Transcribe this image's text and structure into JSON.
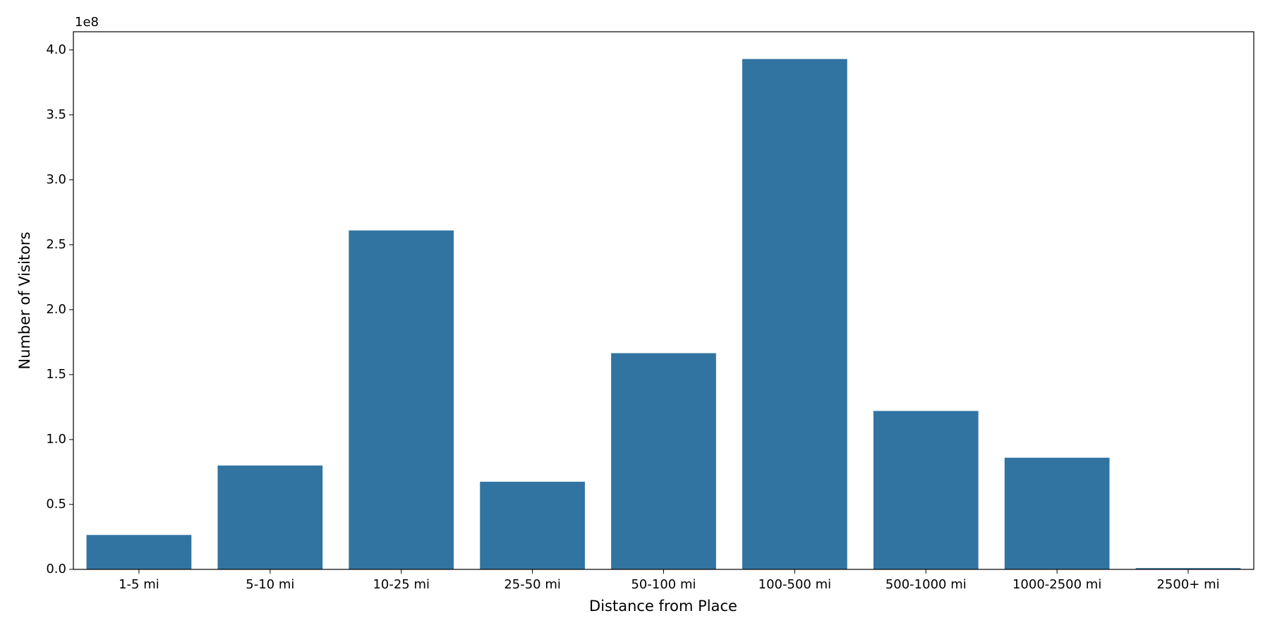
{
  "chart_data": {
    "type": "bar",
    "x_label": "Distance from Place",
    "y_label": "Number of Visitors",
    "y_multiplier_label": "1e8",
    "categories": [
      "1-5 mi",
      "5-10 mi",
      "10-25 mi",
      "25-50 mi",
      "50-100 mi",
      "100-500 mi",
      "500-1000 mi",
      "1000-2500 mi",
      "2500+ mi"
    ],
    "values": [
      0.265,
      0.8,
      2.61,
      0.675,
      1.665,
      3.93,
      1.22,
      0.86,
      0.01
    ],
    "color": "#3274a1",
    "ylim": [
      0,
      4.14
    ],
    "yticks": [
      {
        "value": 0,
        "label": "0.0"
      },
      {
        "value": 0.5,
        "label": "0.5"
      },
      {
        "value": 1,
        "label": "1.0"
      },
      {
        "value": 1.5,
        "label": "1.5"
      },
      {
        "value": 2,
        "label": "2.0"
      },
      {
        "value": 2.5,
        "label": "2.5"
      },
      {
        "value": 3,
        "label": "3.0"
      },
      {
        "value": 3.5,
        "label": "3.5"
      },
      {
        "value": 4,
        "label": "4.0"
      }
    ],
    "grid": false
  }
}
